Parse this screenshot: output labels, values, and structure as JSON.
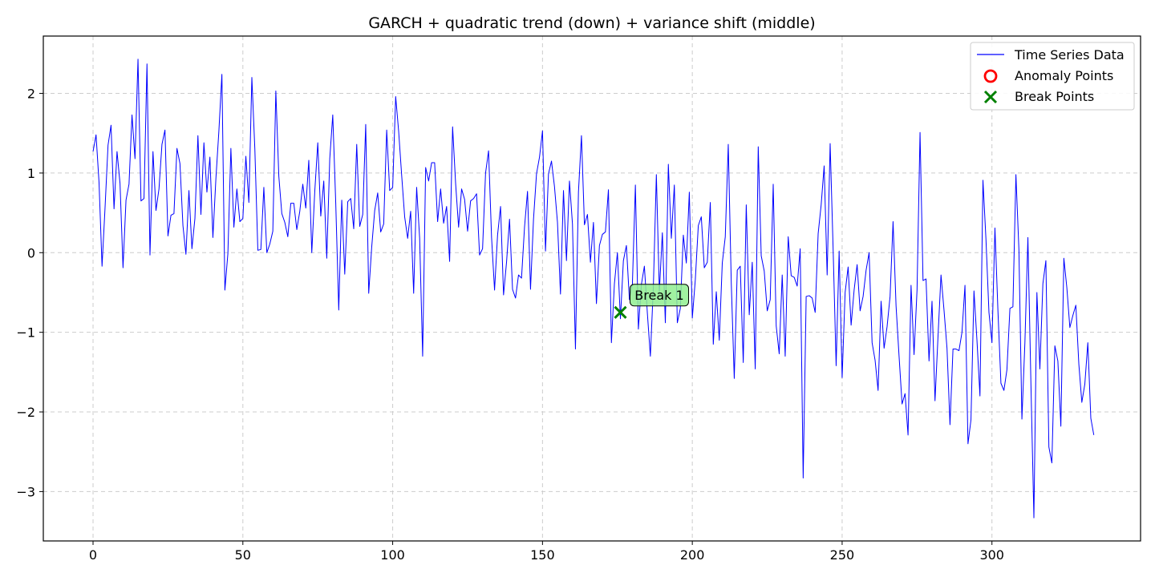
{
  "chart_data": {
    "type": "line",
    "title": "GARCH + quadratic trend (down) + variance shift (middle)",
    "xlabel": "",
    "ylabel": "",
    "xlim": [
      -16.6,
      349.6
    ],
    "ylim": [
      -3.62,
      2.72
    ],
    "xticks": [
      0,
      50,
      100,
      150,
      200,
      250,
      300
    ],
    "yticks": [
      -3,
      -2,
      -1,
      0,
      1,
      2
    ],
    "grid": true,
    "legend_position": "top-right",
    "legend": [
      "Time Series Data",
      "Anomaly Points",
      "Break Points"
    ],
    "colors": {
      "series": "#0000ff",
      "anomaly": "#ff0000",
      "break": "#008000",
      "annotation_fill": "#90ee90",
      "grid": "#cccccc"
    },
    "series": [
      {
        "name": "Time Series Data",
        "x_start": 0,
        "values": [
          1.27,
          1.48,
          0.88,
          -0.17,
          0.56,
          1.35,
          1.6,
          0.55,
          1.27,
          0.87,
          -0.19,
          0.66,
          0.86,
          1.73,
          1.18,
          2.43,
          0.65,
          0.68,
          2.37,
          -0.03,
          1.27,
          0.53,
          0.8,
          1.36,
          1.54,
          0.21,
          0.47,
          0.49,
          1.31,
          1.12,
          0.34,
          -0.02,
          0.78,
          0.05,
          0.43,
          1.47,
          0.48,
          1.38,
          0.76,
          1.2,
          0.19,
          0.93,
          1.53,
          2.24,
          -0.47,
          -0.01,
          1.31,
          0.32,
          0.8,
          0.39,
          0.43,
          1.21,
          0.63,
          2.2,
          1.3,
          0.03,
          0.04,
          0.82,
          0.0,
          0.11,
          0.27,
          2.03,
          0.96,
          0.49,
          0.38,
          0.2,
          0.62,
          0.62,
          0.29,
          0.52,
          0.86,
          0.56,
          1.16,
          0.0,
          0.77,
          1.38,
          0.46,
          0.9,
          -0.07,
          1.18,
          1.73,
          0.62,
          -0.72,
          0.66,
          -0.27,
          0.64,
          0.68,
          0.3,
          1.36,
          0.33,
          0.48,
          1.61,
          -0.51,
          0.07,
          0.53,
          0.75,
          0.26,
          0.36,
          1.54,
          0.78,
          0.82,
          1.96,
          1.52,
          0.97,
          0.45,
          0.18,
          0.52,
          -0.51,
          0.82,
          0.18,
          -1.3,
          1.07,
          0.9,
          1.13,
          1.13,
          0.39,
          0.8,
          0.37,
          0.58,
          -0.11,
          1.58,
          0.87,
          0.32,
          0.8,
          0.67,
          0.27,
          0.65,
          0.68,
          0.74,
          -0.03,
          0.05,
          1.0,
          1.28,
          0.19,
          -0.47,
          0.22,
          0.58,
          -0.53,
          -0.12,
          0.42,
          -0.46,
          -0.57,
          -0.28,
          -0.32,
          0.32,
          0.77,
          -0.46,
          0.42,
          0.99,
          1.2,
          1.53,
          0.02,
          0.99,
          1.15,
          0.83,
          0.38,
          -0.52,
          0.78,
          -0.1,
          0.9,
          0.36,
          -1.21,
          0.76,
          1.47,
          0.35,
          0.48,
          -0.12,
          0.38,
          -0.64,
          0.09,
          0.23,
          0.26,
          0.79,
          -1.13,
          -0.39,
          0.0,
          -0.83,
          -0.1,
          0.09,
          -0.59,
          -0.4,
          0.85,
          -0.96,
          -0.4,
          -0.17,
          -0.76,
          -1.3,
          -0.43,
          0.98,
          -0.49,
          0.25,
          -0.88,
          1.11,
          0.18,
          0.85,
          -0.88,
          -0.7,
          0.22,
          -0.13,
          0.76,
          -0.82,
          -0.34,
          0.34,
          0.45,
          -0.19,
          -0.12,
          0.63,
          -1.15,
          -0.49,
          -1.1,
          -0.13,
          0.2,
          1.36,
          -0.38,
          -1.58,
          -0.22,
          -0.17,
          -1.38,
          0.6,
          -0.78,
          -0.12,
          -1.46,
          1.33,
          -0.04,
          -0.23,
          -0.73,
          -0.59,
          0.86,
          -0.92,
          -1.27,
          -0.28,
          -1.3,
          0.2,
          -0.29,
          -0.31,
          -0.42,
          0.05,
          -2.83,
          -0.55,
          -0.54,
          -0.57,
          -0.75,
          0.24,
          0.6,
          1.09,
          -0.28,
          1.37,
          0.04,
          -1.42,
          0.02,
          -1.57,
          -0.5,
          -0.18,
          -0.91,
          -0.47,
          -0.15,
          -0.73,
          -0.55,
          -0.22,
          0.0,
          -1.13,
          -1.35,
          -1.73,
          -0.61,
          -1.2,
          -0.93,
          -0.55,
          0.39,
          -0.67,
          -1.3,
          -1.9,
          -1.77,
          -2.29,
          -0.41,
          -1.28,
          -0.47,
          1.51,
          -0.35,
          -0.33,
          -1.36,
          -0.61,
          -1.86,
          -1.05,
          -0.28,
          -0.72,
          -1.2,
          -2.16,
          -1.21,
          -1.21,
          -1.23,
          -1.0,
          -0.41,
          -2.4,
          -2.1,
          -0.48,
          -1.1,
          -1.8,
          0.91,
          0.17,
          -0.75,
          -1.13,
          0.31,
          -0.73,
          -1.64,
          -1.73,
          -1.47,
          -0.7,
          -0.68,
          0.98,
          0.04,
          -2.09,
          -1.13,
          0.19,
          -1.63,
          -3.33,
          -0.5,
          -1.46,
          -0.39,
          -0.1,
          -2.44,
          -2.64,
          -1.17,
          -1.36,
          -2.18,
          -0.07,
          -0.44,
          -0.94,
          -0.79,
          -0.66,
          -1.4,
          -1.88,
          -1.65,
          -1.13,
          -2.08,
          -2.29
        ]
      }
    ],
    "anomaly_points": [],
    "break_points": [
      {
        "x": 176,
        "y": -0.75,
        "label": "Break 1"
      }
    ]
  }
}
